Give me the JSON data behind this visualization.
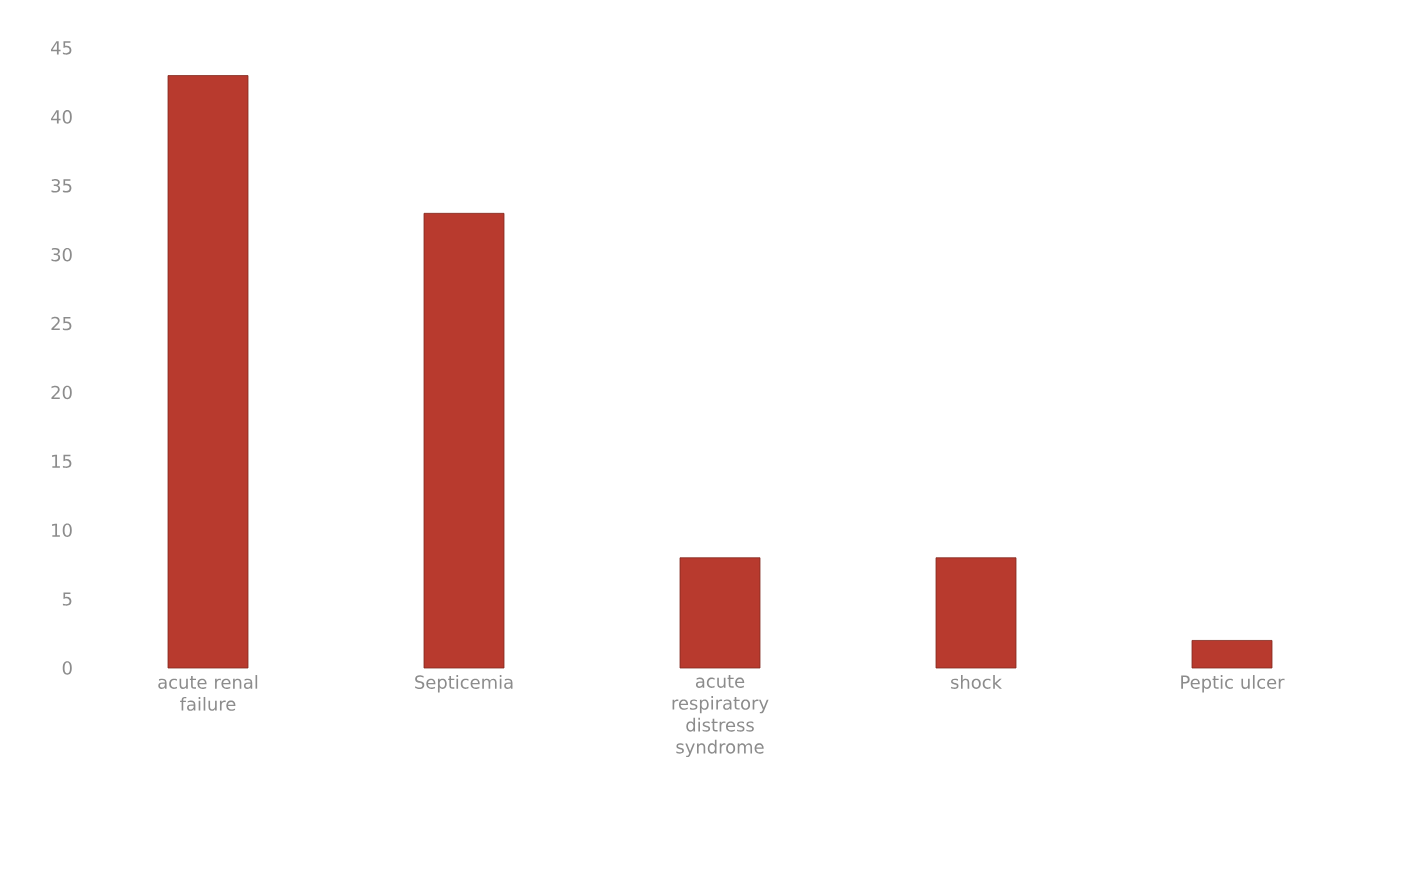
{
  "chart_data": {
    "type": "bar",
    "categories": [
      "acute renal failure",
      "Septicemia",
      "acute respiratory distress syndrome",
      "shock",
      "Peptic ulcer"
    ],
    "values": [
      43,
      33,
      8,
      8,
      2
    ],
    "color": "#b83a2e",
    "ylim": [
      0,
      45
    ],
    "yticks": [
      0,
      5,
      10,
      15,
      20,
      25,
      30,
      35,
      40,
      45
    ]
  }
}
